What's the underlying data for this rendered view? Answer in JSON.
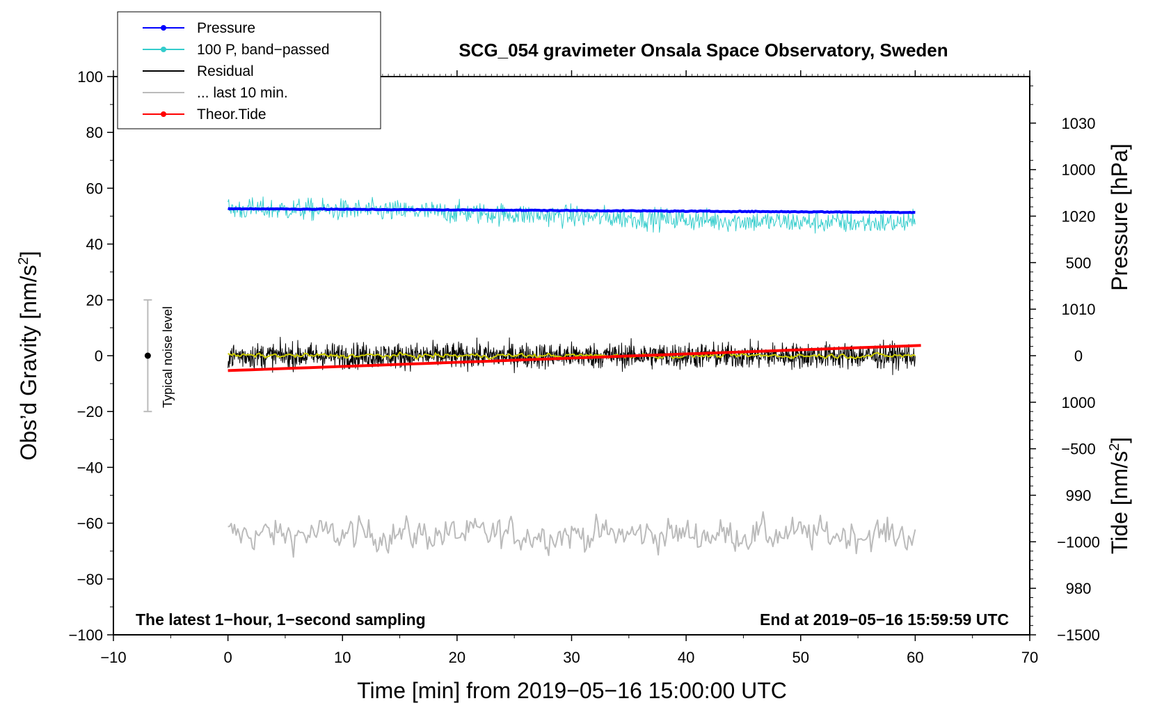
{
  "chart_data": {
    "type": "line",
    "title": "SCG_054 gravimeter Onsala Space Observatory, Sweden",
    "xlabel": "Time [min] from 2019−05−16 15:00:00 UTC",
    "ylabel_left": "Obs’d Gravity [nm/s",
    "ylabel_left_sup": "2",
    "ylabel_left_end": "]",
    "ylabel_right_top": "Pressure [hPa]",
    "ylabel_right_bottom": "Tide [nm/s",
    "ylabel_right_bottom_sup": "2",
    "ylabel_right_bottom_end": "]",
    "xlim": [
      -10,
      70
    ],
    "ylim_left": [
      -100,
      100
    ],
    "ylim_pressure": [
      975,
      1035
    ],
    "ylim_tide": [
      -1500,
      1500
    ],
    "x_ticks": [
      "−10",
      "0",
      "10",
      "20",
      "30",
      "40",
      "50",
      "60",
      "70"
    ],
    "x_tick_values": [
      -10,
      0,
      10,
      20,
      30,
      40,
      50,
      60,
      70
    ],
    "y_left_ticks": [
      "100",
      "80",
      "60",
      "40",
      "20",
      "0",
      "−20",
      "−40",
      "−60",
      "−80",
      "−100"
    ],
    "y_left_tick_values": [
      100,
      80,
      60,
      40,
      20,
      0,
      -20,
      -40,
      -60,
      -80,
      -100
    ],
    "pressure_ticks": [
      "1030",
      "1020",
      "1010",
      "1000",
      "990",
      "980"
    ],
    "pressure_tick_values": [
      1030,
      1020,
      1010,
      1000,
      990,
      980
    ],
    "tide_ticks": [
      "1000",
      "500",
      "0",
      "−500",
      "−1000",
      "−1500"
    ],
    "tide_tick_values": [
      1000,
      500,
      0,
      -500,
      -1000,
      -1500
    ],
    "legend": {
      "placement": "top-left",
      "entries": [
        {
          "label": "Pressure",
          "color": "#0000ff",
          "marker": true
        },
        {
          "label": "100 P, band−passed",
          "color": "#33cccc",
          "marker": true
        },
        {
          "label": "Residual",
          "color": "#000000",
          "marker": false
        },
        {
          "label": "... last 10 min.",
          "color": "#bbbbbb",
          "marker": false
        },
        {
          "label": "Theor.Tide",
          "color": "#ff0000",
          "marker": true
        }
      ]
    },
    "annotations": {
      "left": "The latest 1−hour, 1−second sampling",
      "right": "End at 2019−05−16 15:59:59 UTC"
    },
    "noise_bar": {
      "label": "Typical noise level",
      "x": -7,
      "y_center": 0,
      "y_low": -20,
      "y_high": 20
    },
    "series": [
      {
        "name": "Pressure",
        "color": "#0000ff",
        "unit": "hPa",
        "x_range": [
          0,
          60
        ],
        "start": 1020.8,
        "end": 1020.4,
        "variation": 0.15
      },
      {
        "name": "100 P, band−passed",
        "color": "#33cccc",
        "unit": "nm/s2",
        "x_range": [
          0,
          60
        ],
        "mean": 50,
        "amplitude": 7,
        "max": 64,
        "min": 33
      },
      {
        "name": "Residual",
        "color": "#000000",
        "unit": "nm/s2",
        "x_range": [
          0,
          60
        ],
        "mean": 0,
        "amplitude": 6,
        "max": 15,
        "min": -15
      },
      {
        "name": "Residual smoothed",
        "color": "#cccc00",
        "unit": "nm/s2",
        "x_range": [
          0,
          60
        ],
        "mean": 0,
        "amplitude": 1.5
      },
      {
        "name": "... last 10 min.",
        "color": "#bbbbbb",
        "unit": "nm/s2",
        "x_range": [
          0,
          60
        ],
        "mean": -64,
        "amplitude": 6,
        "max": -50,
        "min": -76
      },
      {
        "name": "Theor.Tide",
        "color": "#ff0000",
        "unit": "nm/s2",
        "x_range": [
          0,
          60.5
        ],
        "start": -80,
        "end": 55
      }
    ]
  }
}
